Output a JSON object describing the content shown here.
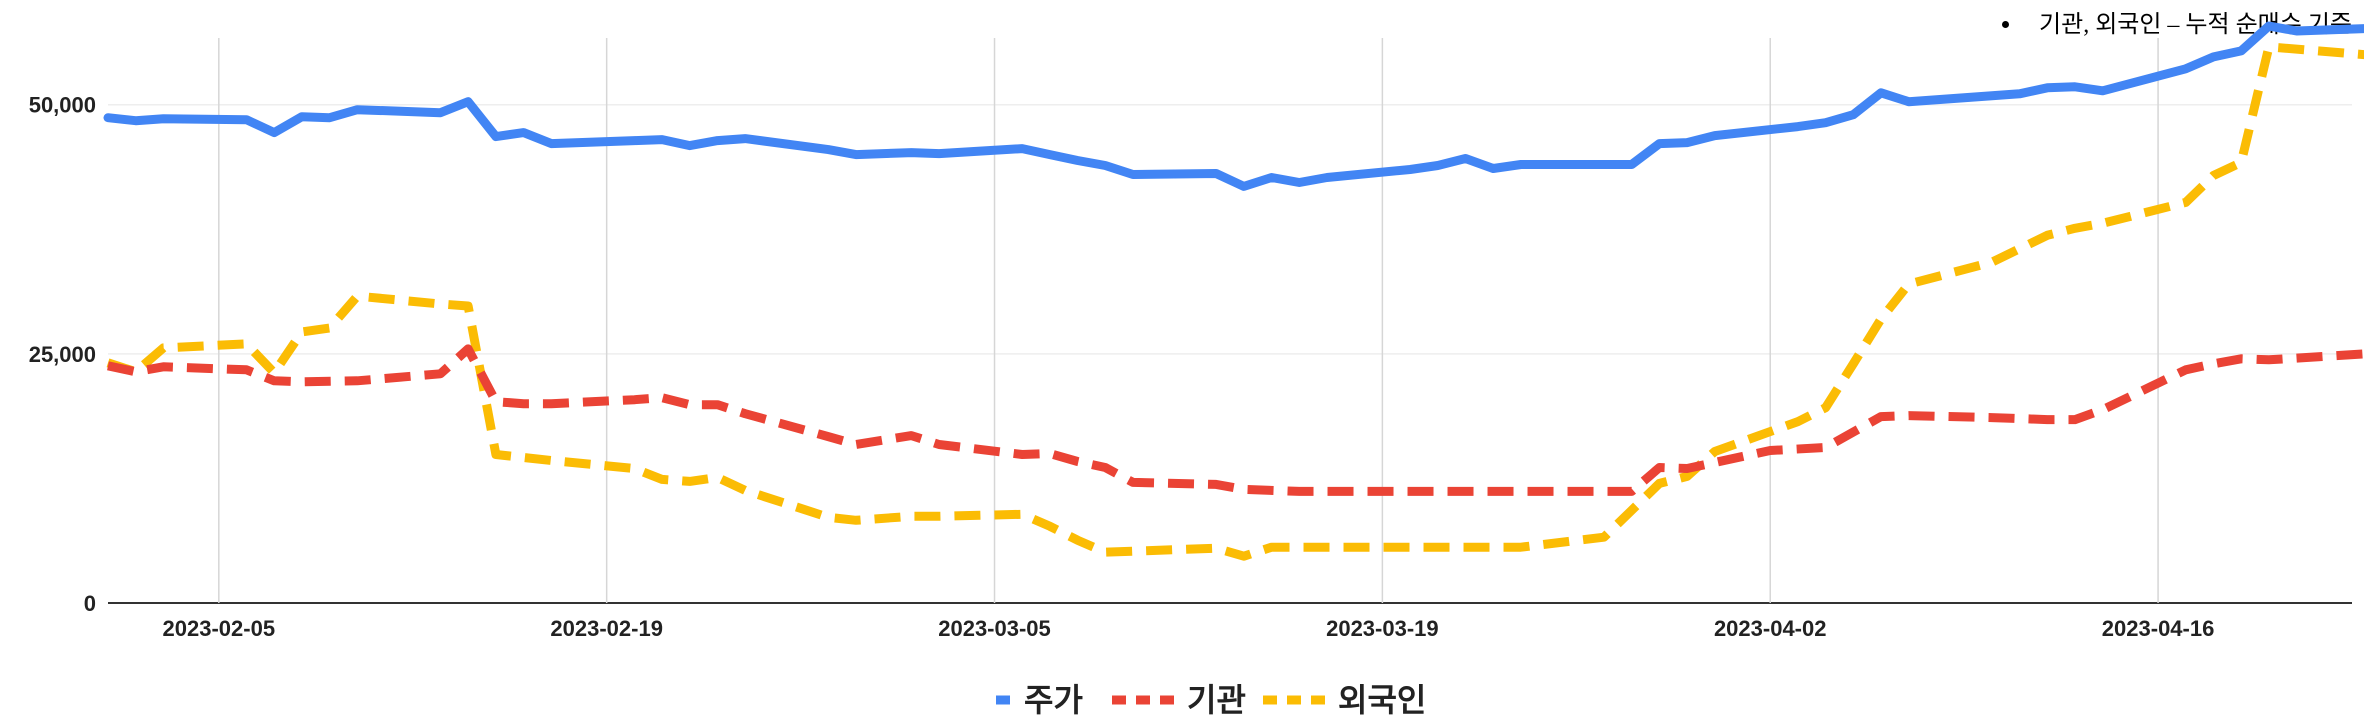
{
  "note": {
    "text": "기관, 외국인 – 누적 순매수 기준"
  },
  "chart_data": {
    "type": "line",
    "title": "",
    "xlabel": "",
    "ylabel": "",
    "ylim": [
      0,
      58000
    ],
    "yticks": [
      "0",
      "25,000",
      "50,000"
    ],
    "ytick_values": [
      0,
      25000,
      50000
    ],
    "xticks": [
      "2023-02-05",
      "2023-02-19",
      "2023-03-05",
      "2023-03-19",
      "2023-04-02",
      "2023-04-16"
    ],
    "x_start": "2023-02-01",
    "x_end": "2023-04-23",
    "grid": "vertical lines at x ticks, horizontal lines at y ticks",
    "legend_position": "bottom",
    "series": [
      {
        "name": "주가",
        "color": "#4285F4",
        "dash": "solid",
        "points": [
          [
            "2023-02-01",
            48700
          ],
          [
            "2023-02-02",
            48400
          ],
          [
            "2023-02-03",
            48600
          ],
          [
            "2023-02-06",
            48500
          ],
          [
            "2023-02-07",
            47200
          ],
          [
            "2023-02-08",
            48800
          ],
          [
            "2023-02-09",
            48700
          ],
          [
            "2023-02-10",
            49500
          ],
          [
            "2023-02-13",
            49200
          ],
          [
            "2023-02-14",
            50300
          ],
          [
            "2023-02-15",
            46800
          ],
          [
            "2023-02-16",
            47200
          ],
          [
            "2023-02-17",
            46100
          ],
          [
            "2023-02-20",
            46400
          ],
          [
            "2023-02-21",
            46500
          ],
          [
            "2023-02-22",
            45900
          ],
          [
            "2023-02-23",
            46400
          ],
          [
            "2023-02-24",
            46600
          ],
          [
            "2023-02-27",
            45500
          ],
          [
            "2023-02-28",
            45000
          ],
          [
            "2023-03-02",
            45200
          ],
          [
            "2023-03-03",
            45100
          ],
          [
            "2023-03-06",
            45600
          ],
          [
            "2023-03-07",
            45000
          ],
          [
            "2023-03-08",
            44400
          ],
          [
            "2023-03-09",
            43900
          ],
          [
            "2023-03-10",
            43000
          ],
          [
            "2023-03-13",
            43100
          ],
          [
            "2023-03-14",
            41800
          ],
          [
            "2023-03-15",
            42700
          ],
          [
            "2023-03-16",
            42200
          ],
          [
            "2023-03-17",
            42700
          ],
          [
            "2023-03-20",
            43500
          ],
          [
            "2023-03-21",
            43900
          ],
          [
            "2023-03-22",
            44600
          ],
          [
            "2023-03-23",
            43600
          ],
          [
            "2023-03-24",
            44000
          ],
          [
            "2023-03-27",
            44000
          ],
          [
            "2023-03-28",
            44000
          ],
          [
            "2023-03-29",
            46100
          ],
          [
            "2023-03-30",
            46200
          ],
          [
            "2023-03-31",
            46900
          ],
          [
            "2023-04-03",
            47800
          ],
          [
            "2023-04-04",
            48200
          ],
          [
            "2023-04-05",
            49000
          ],
          [
            "2023-04-06",
            51200
          ],
          [
            "2023-04-07",
            50300
          ],
          [
            "2023-04-10",
            50900
          ],
          [
            "2023-04-11",
            51100
          ],
          [
            "2023-04-12",
            51700
          ],
          [
            "2023-04-13",
            51800
          ],
          [
            "2023-04-14",
            51400
          ],
          [
            "2023-04-17",
            53600
          ],
          [
            "2023-04-18",
            54800
          ],
          [
            "2023-04-19",
            55400
          ],
          [
            "2023-04-20",
            57900
          ],
          [
            "2023-04-21",
            57400
          ],
          [
            "2023-04-24",
            57700
          ]
        ]
      },
      {
        "name": "기관",
        "color": "#EA4335",
        "dash": "dashed",
        "points": [
          [
            "2023-02-01",
            23800
          ],
          [
            "2023-02-02",
            23200
          ],
          [
            "2023-02-03",
            23700
          ],
          [
            "2023-02-06",
            23400
          ],
          [
            "2023-02-07",
            22300
          ],
          [
            "2023-02-08",
            22200
          ],
          [
            "2023-02-10",
            22300
          ],
          [
            "2023-02-13",
            23000
          ],
          [
            "2023-02-14",
            25500
          ],
          [
            "2023-02-15",
            20200
          ],
          [
            "2023-02-16",
            20000
          ],
          [
            "2023-02-17",
            20000
          ],
          [
            "2023-02-20",
            20400
          ],
          [
            "2023-02-21",
            20600
          ],
          [
            "2023-02-22",
            19900
          ],
          [
            "2023-02-23",
            19900
          ],
          [
            "2023-02-24",
            19000
          ],
          [
            "2023-02-27",
            16700
          ],
          [
            "2023-02-28",
            15900
          ],
          [
            "2023-03-02",
            16800
          ],
          [
            "2023-03-03",
            15900
          ],
          [
            "2023-03-06",
            14900
          ],
          [
            "2023-03-07",
            15000
          ],
          [
            "2023-03-08",
            14200
          ],
          [
            "2023-03-09",
            13600
          ],
          [
            "2023-03-10",
            12100
          ],
          [
            "2023-03-13",
            11900
          ],
          [
            "2023-03-14",
            11400
          ],
          [
            "2023-03-16",
            11200
          ],
          [
            "2023-03-20",
            11200
          ],
          [
            "2023-03-24",
            11200
          ],
          [
            "2023-03-28",
            11200
          ],
          [
            "2023-03-29",
            13600
          ],
          [
            "2023-03-30",
            13500
          ],
          [
            "2023-04-02",
            15300
          ],
          [
            "2023-04-04",
            15600
          ],
          [
            "2023-04-06",
            18700
          ],
          [
            "2023-04-07",
            18800
          ],
          [
            "2023-04-10",
            18600
          ],
          [
            "2023-04-12",
            18400
          ],
          [
            "2023-04-13",
            18400
          ],
          [
            "2023-04-14",
            19400
          ],
          [
            "2023-04-17",
            23400
          ],
          [
            "2023-04-18",
            24000
          ],
          [
            "2023-04-19",
            24500
          ],
          [
            "2023-04-20",
            24400
          ],
          [
            "2023-04-24",
            25100
          ]
        ]
      },
      {
        "name": "외국인",
        "color": "#FBBC04",
        "dash": "dashed",
        "points": [
          [
            "2023-02-01",
            24100
          ],
          [
            "2023-02-02",
            23200
          ],
          [
            "2023-02-03",
            25600
          ],
          [
            "2023-02-06",
            26000
          ],
          [
            "2023-02-07",
            23100
          ],
          [
            "2023-02-08",
            27200
          ],
          [
            "2023-02-09",
            27600
          ],
          [
            "2023-02-10",
            30800
          ],
          [
            "2023-02-13",
            30000
          ],
          [
            "2023-02-14",
            29800
          ],
          [
            "2023-02-15",
            14900
          ],
          [
            "2023-02-16",
            14600
          ],
          [
            "2023-02-17",
            14300
          ],
          [
            "2023-02-20",
            13500
          ],
          [
            "2023-02-21",
            12400
          ],
          [
            "2023-02-22",
            12200
          ],
          [
            "2023-02-23",
            12600
          ],
          [
            "2023-02-24",
            11300
          ],
          [
            "2023-02-27",
            8600
          ],
          [
            "2023-02-28",
            8300
          ],
          [
            "2023-03-02",
            8700
          ],
          [
            "2023-03-03",
            8700
          ],
          [
            "2023-03-06",
            8900
          ],
          [
            "2023-03-07",
            7700
          ],
          [
            "2023-03-08",
            6300
          ],
          [
            "2023-03-09",
            5100
          ],
          [
            "2023-03-13",
            5500
          ],
          [
            "2023-03-14",
            4700
          ],
          [
            "2023-03-15",
            5600
          ],
          [
            "2023-03-20",
            5600
          ],
          [
            "2023-03-24",
            5600
          ],
          [
            "2023-03-27",
            6600
          ],
          [
            "2023-03-29",
            12000
          ],
          [
            "2023-03-30",
            12700
          ],
          [
            "2023-03-31",
            15200
          ],
          [
            "2023-04-03",
            18200
          ],
          [
            "2023-04-04",
            19600
          ],
          [
            "2023-04-05",
            24000
          ],
          [
            "2023-04-06",
            28500
          ],
          [
            "2023-04-07",
            32000
          ],
          [
            "2023-04-10",
            34200
          ],
          [
            "2023-04-12",
            36900
          ],
          [
            "2023-04-13",
            37600
          ],
          [
            "2023-04-14",
            38100
          ],
          [
            "2023-04-17",
            40200
          ],
          [
            "2023-04-18",
            42900
          ],
          [
            "2023-04-19",
            44200
          ],
          [
            "2023-04-20",
            55800
          ],
          [
            "2023-04-24",
            54900
          ]
        ]
      }
    ]
  }
}
